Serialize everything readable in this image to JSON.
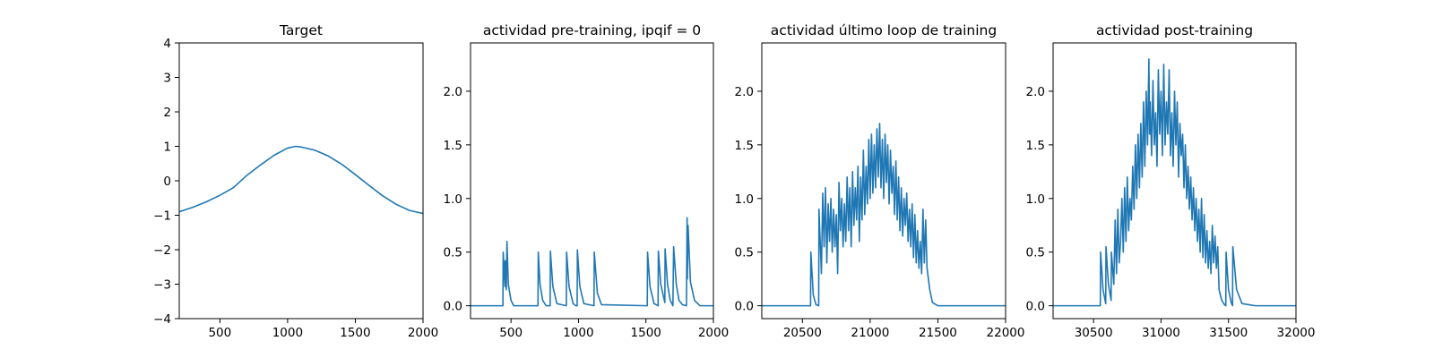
{
  "figure": {
    "line_color": "#1f77b4",
    "background": "#ffffff"
  },
  "chart_data": [
    {
      "type": "line",
      "title": "Target",
      "xlabel": "",
      "ylabel": "",
      "xlim": [
        200,
        2000
      ],
      "ylim": [
        -4,
        4
      ],
      "x_ticks": [
        500,
        1000,
        1500,
        2000
      ],
      "y_ticks": [
        -4,
        -3,
        -2,
        -1,
        0,
        1,
        2,
        3,
        4
      ],
      "y_tick_labels": [
        "−4",
        "−3",
        "−2",
        "−1",
        "0",
        "1",
        "2",
        "3",
        "4"
      ],
      "grid": false,
      "series": [
        {
          "x": [
            200,
            300,
            400,
            500,
            600,
            700,
            800,
            900,
            1000,
            1060,
            1100,
            1200,
            1300,
            1400,
            1500,
            1600,
            1700,
            1800,
            1900,
            2000
          ],
          "y": [
            -0.9,
            -0.77,
            -0.61,
            -0.42,
            -0.2,
            0.16,
            0.46,
            0.74,
            0.95,
            1.0,
            0.98,
            0.89,
            0.72,
            0.48,
            0.18,
            -0.13,
            -0.43,
            -0.68,
            -0.86,
            -0.95
          ]
        }
      ]
    },
    {
      "type": "line",
      "title": "actividad pre-training, ipqif = 0",
      "xlabel": "",
      "ylabel": "",
      "xlim": [
        200,
        2000
      ],
      "ylim": [
        -0.12,
        2.45
      ],
      "x_ticks": [
        500,
        1000,
        1500,
        2000
      ],
      "y_ticks": [
        0.0,
        0.5,
        1.0,
        1.5,
        2.0
      ],
      "y_tick_labels": [
        "0.0",
        "0.5",
        "1.0",
        "1.5",
        "2.0"
      ],
      "grid": false,
      "series": [
        {
          "x": [
            200,
            440,
            442,
            455,
            457,
            465,
            470,
            480,
            500,
            520,
            700,
            702,
            715,
            735,
            760,
            790,
            792,
            810,
            840,
            910,
            912,
            930,
            960,
            980,
            990,
            992,
            1010,
            1040,
            1115,
            1117,
            1140,
            1170,
            1510,
            1512,
            1530,
            1560,
            1590,
            1592,
            1610,
            1640,
            1642,
            1660,
            1680,
            1700,
            1705,
            1725,
            1745,
            1770,
            1800,
            1805,
            1807,
            1812,
            1830,
            1860,
            1900,
            2000
          ],
          "y": [
            0,
            0,
            0.5,
            0.18,
            0.42,
            0.15,
            0.6,
            0.2,
            0.05,
            0,
            0,
            0.5,
            0.2,
            0.05,
            0,
            0,
            0.51,
            0.18,
            0.02,
            0,
            0.5,
            0.18,
            0.02,
            0,
            0,
            0.52,
            0.18,
            0.02,
            0,
            0.5,
            0.12,
            0.01,
            0,
            0.5,
            0.18,
            0.02,
            0,
            0.51,
            0.2,
            0.03,
            0.53,
            0.2,
            0.05,
            0,
            0.55,
            0.2,
            0.05,
            0.01,
            0,
            0.82,
            0.25,
            0.75,
            0.22,
            0.05,
            0,
            0
          ]
        }
      ]
    },
    {
      "type": "line",
      "title": "actividad último loop de training",
      "xlabel": "",
      "ylabel": "",
      "xlim": [
        20200,
        22000
      ],
      "ylim": [
        -0.12,
        2.45
      ],
      "x_ticks": [
        20500,
        21000,
        21500,
        22000
      ],
      "y_ticks": [
        0.0,
        0.5,
        1.0,
        1.5,
        2.0
      ],
      "y_tick_labels": [
        "0.0",
        "0.5",
        "1.0",
        "1.5",
        "2.0"
      ],
      "grid": false,
      "series": [
        {
          "x": [
            20200,
            20560,
            20562,
            20580,
            20600,
            20620,
            20622,
            20640,
            20650,
            20660,
            20670,
            20680,
            20690,
            20700,
            20710,
            20720,
            20730,
            20740,
            20750,
            20760,
            20770,
            20780,
            20790,
            20800,
            20810,
            20820,
            20830,
            20840,
            20850,
            20860,
            20870,
            20880,
            20890,
            20900,
            20910,
            20920,
            20930,
            20940,
            20950,
            20960,
            20970,
            20980,
            20990,
            21000,
            21010,
            21020,
            21030,
            21040,
            21050,
            21060,
            21070,
            21080,
            21090,
            21100,
            21110,
            21120,
            21130,
            21140,
            21150,
            21160,
            21170,
            21180,
            21190,
            21200,
            21210,
            21220,
            21230,
            21240,
            21250,
            21260,
            21270,
            21280,
            21290,
            21300,
            21310,
            21320,
            21330,
            21340,
            21350,
            21360,
            21370,
            21380,
            21390,
            21400,
            21410,
            21420,
            21440,
            21460,
            21500,
            21600,
            22000
          ],
          "y": [
            0,
            0,
            0.5,
            0.1,
            0.01,
            0,
            0.9,
            0.3,
            1.05,
            0.55,
            1.1,
            0.4,
            0.95,
            0.6,
            1.0,
            0.5,
            0.9,
            0.55,
            0.85,
            0.3,
            1.15,
            0.7,
            1.0,
            0.55,
            0.95,
            0.6,
            1.2,
            0.7,
            1.1,
            0.55,
            1.25,
            0.75,
            1.1,
            0.8,
            1.3,
            0.6,
            1.2,
            0.8,
            1.45,
            0.85,
            1.3,
            0.95,
            1.55,
            1.0,
            1.6,
            1.05,
            1.5,
            1.1,
            1.65,
            1.2,
            1.7,
            1.1,
            1.55,
            1.0,
            1.6,
            1.15,
            1.5,
            0.95,
            1.45,
            1.05,
            1.3,
            0.85,
            1.35,
            0.8,
            1.2,
            0.7,
            1.1,
            0.65,
            1.0,
            0.75,
            1.05,
            0.6,
            0.9,
            0.55,
            0.95,
            0.45,
            0.85,
            0.4,
            0.7,
            0.35,
            0.6,
            0.3,
            0.9,
            0.4,
            0.8,
            0.35,
            0.15,
            0.03,
            0,
            0,
            0
          ]
        }
      ]
    },
    {
      "type": "line",
      "title": "actividad post-training",
      "xlabel": "",
      "ylabel": "",
      "xlim": [
        30200,
        32000
      ],
      "ylim": [
        -0.12,
        2.45
      ],
      "x_ticks": [
        30500,
        31000,
        31500,
        32000
      ],
      "y_ticks": [
        0.0,
        0.5,
        1.0,
        1.5,
        2.0
      ],
      "y_tick_labels": [
        "0.0",
        "0.5",
        "1.0",
        "1.5",
        "2.0"
      ],
      "grid": false,
      "series": [
        {
          "x": [
            30200,
            30550,
            30552,
            30570,
            30590,
            30592,
            30610,
            30630,
            30632,
            30650,
            30660,
            30670,
            30680,
            30690,
            30700,
            30710,
            30720,
            30730,
            30740,
            30750,
            30760,
            30770,
            30780,
            30790,
            30800,
            30810,
            30820,
            30830,
            30840,
            30850,
            30860,
            30870,
            30880,
            30890,
            30900,
            30910,
            30915,
            30920,
            30930,
            30940,
            30950,
            30960,
            30970,
            30980,
            30990,
            31000,
            31010,
            31020,
            31030,
            31040,
            31050,
            31060,
            31070,
            31080,
            31090,
            31100,
            31110,
            31120,
            31130,
            31140,
            31150,
            31160,
            31170,
            31180,
            31190,
            31200,
            31210,
            31220,
            31230,
            31240,
            31250,
            31260,
            31270,
            31280,
            31290,
            31300,
            31310,
            31320,
            31330,
            31340,
            31350,
            31360,
            31370,
            31380,
            31390,
            31400,
            31410,
            31420,
            31430,
            31450,
            31470,
            31480,
            31482,
            31500,
            31520,
            31530,
            31532,
            31560,
            31600,
            31700,
            32000
          ],
          "y": [
            0,
            0,
            0.5,
            0.15,
            0.02,
            0.55,
            0.2,
            0.05,
            0.5,
            0.2,
            0.8,
            0.3,
            0.9,
            0.4,
            0.6,
            1.0,
            0.5,
            1.1,
            0.6,
            1.2,
            0.7,
            1.0,
            0.8,
            1.3,
            0.9,
            1.5,
            1.0,
            1.6,
            1.1,
            1.7,
            1.2,
            1.9,
            1.3,
            2.0,
            1.5,
            2.3,
            1.6,
            1.9,
            1.4,
            2.1,
            1.5,
            1.8,
            1.3,
            2.2,
            1.6,
            2.0,
            1.4,
            2.25,
            1.5,
            1.9,
            1.6,
            2.2,
            1.4,
            1.8,
            1.3,
            2.0,
            1.5,
            1.9,
            1.2,
            1.7,
            1.4,
            1.6,
            1.1,
            1.5,
            1.0,
            1.3,
            0.9,
            1.2,
            0.8,
            1.1,
            0.7,
            1.0,
            0.6,
            0.9,
            0.5,
            1.0,
            0.45,
            0.85,
            0.4,
            0.7,
            0.35,
            0.6,
            0.3,
            0.75,
            0.4,
            0.65,
            0.35,
            0.55,
            0.15,
            0.05,
            0.01,
            0,
            0.5,
            0.15,
            0.03,
            0,
            0.55,
            0.15,
            0.02,
            0,
            0
          ]
        }
      ]
    }
  ]
}
